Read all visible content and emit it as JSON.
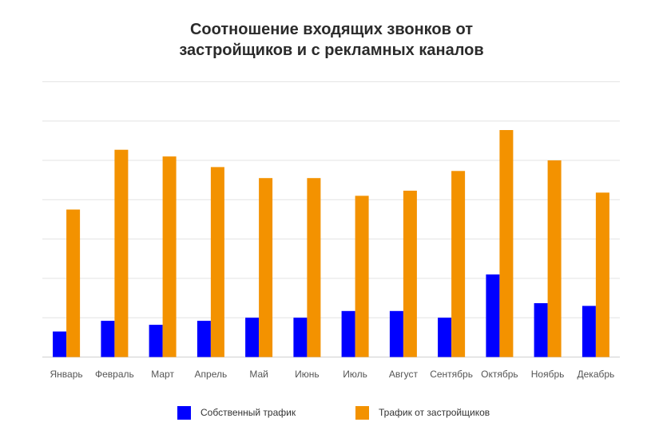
{
  "chart_data": {
    "type": "bar",
    "title_lines": [
      "Соотношение входящих звонков от",
      "застройщиков и с рекламных каналов"
    ],
    "categories": [
      "Январь",
      "Февраль",
      "Март",
      "Апрель",
      "Май",
      "Июнь",
      "Июль",
      "Август",
      "Сентябрь",
      "Октябрь",
      "Ноябрь",
      "Декабрь"
    ],
    "series": [
      {
        "name": "Собственный трафик",
        "color": "#0000ff",
        "values": [
          0.65,
          0.92,
          0.82,
          0.92,
          1.0,
          1.0,
          1.17,
          1.17,
          1.0,
          2.1,
          1.37,
          1.3
        ]
      },
      {
        "name": "Трафик от застройщиков",
        "color": "#f39200",
        "values": [
          3.75,
          5.27,
          5.1,
          4.83,
          4.55,
          4.55,
          4.1,
          4.23,
          4.73,
          5.77,
          5.0,
          4.18
        ]
      }
    ],
    "ylim": [
      0,
      7
    ],
    "grid": true,
    "legend_position": "bottom"
  }
}
